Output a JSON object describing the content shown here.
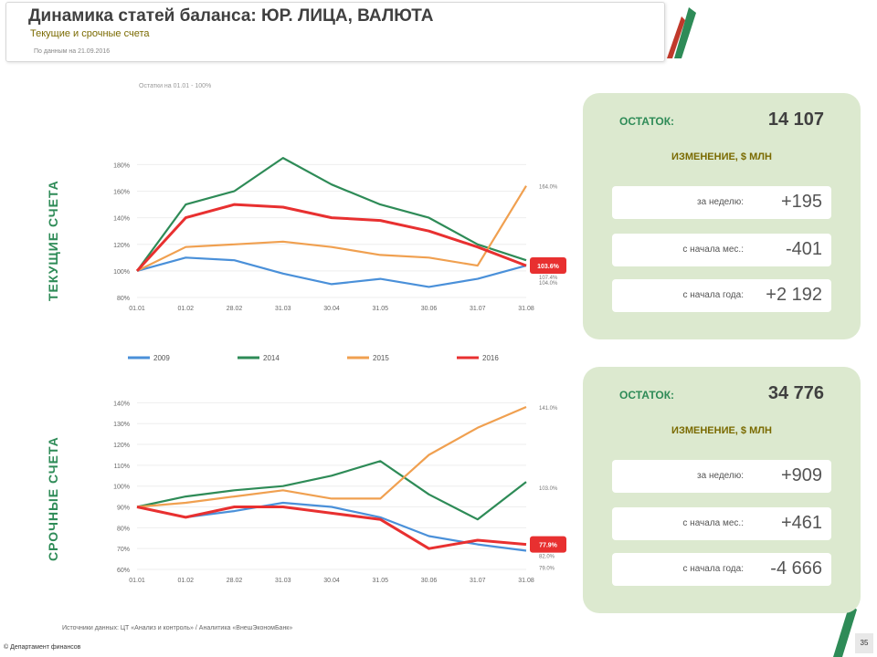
{
  "header": {
    "title": "Динамика статей баланса: ЮР. ЛИЦА, ВАЛЮТА",
    "subtitle": "Текущие и срочные счета",
    "date_note": "По данным на 21.09.2016"
  },
  "colors": {
    "y2009": "#4a90d9",
    "y2014": "#2e8b57",
    "y2015": "#f0a050",
    "y2016": "#e83030",
    "panel_bg": "#dce9cf"
  },
  "sections": {
    "current": {
      "label": "ТЕКУЩИЕ СЧЕТА"
    },
    "term": {
      "label": "СРОЧНЫЕ СЧЕТА"
    }
  },
  "legend": [
    {
      "name": "2009",
      "color": "#4a90d9"
    },
    {
      "name": "2014",
      "color": "#2e8b57"
    },
    {
      "name": "2015",
      "color": "#f0a050"
    },
    {
      "name": "2016",
      "color": "#e83030"
    }
  ],
  "chart_data": [
    {
      "type": "line",
      "note": "Остатки на 01.01 - 100%",
      "x": [
        "01.01",
        "01.02",
        "28.02",
        "31.03",
        "30.04",
        "31.05",
        "30.06",
        "31.07",
        "31.08"
      ],
      "ylim": [
        80,
        205
      ],
      "yticks": [
        "80%",
        "100%",
        "120%",
        "140%",
        "160%",
        "180%"
      ],
      "end_labels": [
        "164.0%",
        "111.1%",
        "107.4%",
        "104.0%"
      ],
      "highlight_label": "103.6%",
      "series": [
        {
          "name": "2009",
          "values": [
            100,
            110,
            108,
            98,
            90,
            94,
            88,
            94,
            104
          ]
        },
        {
          "name": "2014",
          "values": [
            100,
            150,
            160,
            185,
            165,
            150,
            140,
            120,
            108
          ]
        },
        {
          "name": "2015",
          "values": [
            100,
            118,
            120,
            122,
            118,
            112,
            110,
            104,
            164
          ]
        },
        {
          "name": "2016",
          "values": [
            100,
            140,
            150,
            148,
            140,
            138,
            130,
            118,
            104
          ]
        }
      ]
    },
    {
      "type": "line",
      "note": "Остатки на 01.01 - 100%",
      "x": [
        "01.01",
        "01.02",
        "28.02",
        "31.03",
        "30.04",
        "31.05",
        "30.06",
        "31.07",
        "31.08"
      ],
      "ylim": [
        60,
        145
      ],
      "yticks": [
        "60%",
        "70%",
        "80%",
        "90%",
        "100%",
        "110%",
        "120%",
        "130%",
        "140%"
      ],
      "end_labels": [
        "141.0%",
        "103.0%",
        "82.0%",
        "79.0%"
      ],
      "highlight_label": "77.9%",
      "series": [
        {
          "name": "2009",
          "values": [
            90,
            85,
            88,
            92,
            90,
            85,
            76,
            72,
            69
          ]
        },
        {
          "name": "2014",
          "values": [
            90,
            95,
            98,
            100,
            105,
            112,
            96,
            84,
            102
          ]
        },
        {
          "name": "2015",
          "values": [
            90,
            92,
            95,
            98,
            94,
            94,
            115,
            128,
            138
          ]
        },
        {
          "name": "2016",
          "values": [
            90,
            85,
            90,
            90,
            87,
            84,
            70,
            74,
            72
          ]
        }
      ]
    }
  ],
  "panels": [
    {
      "balance_label": "ОСТАТОК:",
      "balance_value": "14 107",
      "change_title": "ИЗМЕНЕНИЕ, $ МЛН",
      "rows": [
        {
          "label": "за неделю:",
          "value": "+195"
        },
        {
          "label": "с начала мес.:",
          "value": "-401"
        },
        {
          "label": "с начала года:",
          "value": "+2 192"
        }
      ]
    },
    {
      "balance_label": "ОСТАТОК:",
      "balance_value": "34 776",
      "change_title": "ИЗМЕНЕНИЕ, $ МЛН",
      "rows": [
        {
          "label": "за неделю:",
          "value": "+909"
        },
        {
          "label": "с начала мес.:",
          "value": "+461"
        },
        {
          "label": "с начала года:",
          "value": "-4 666"
        }
      ]
    }
  ],
  "footer": {
    "source": "Источники данных: ЦТ «Анализ и контроль» / Аналитика «ВнешЭкономБанк»",
    "copyright": "© Департамент финансов",
    "page": "35"
  }
}
